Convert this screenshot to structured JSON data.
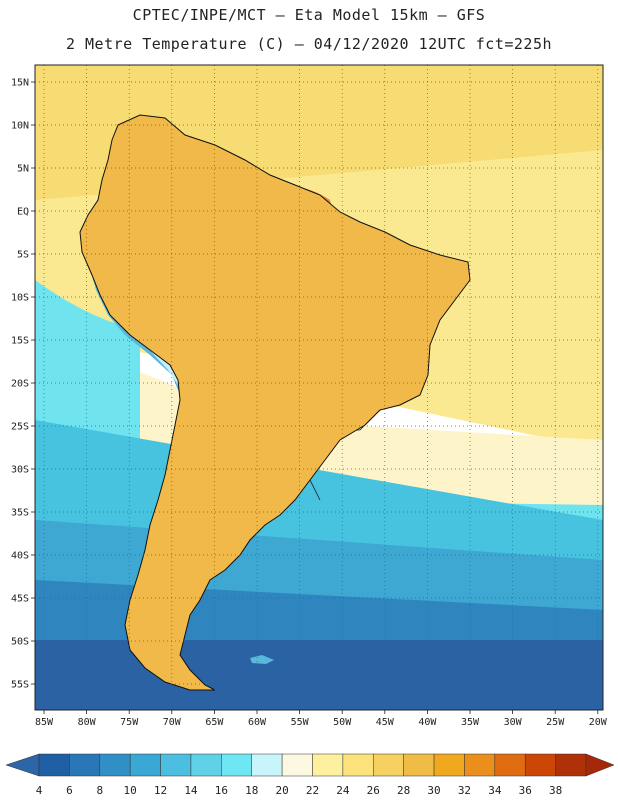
{
  "header": {
    "line1": "CPTEC/INPE/MCT –  Eta Model 15km – GFS",
    "line2": "2 Metre Temperature (C) – 04/12/2020 12UTC fct=225h"
  },
  "axes": {
    "lat_labels": [
      "15N",
      "10N",
      "5N",
      "EQ",
      "5S",
      "10S",
      "15S",
      "20S",
      "25S",
      "30S",
      "35S",
      "40S",
      "45S",
      "50S",
      "55S"
    ],
    "lon_labels": [
      "85W",
      "80W",
      "75W",
      "70W",
      "65W",
      "60W",
      "55W",
      "50W",
      "45W",
      "40W",
      "35W",
      "30W",
      "25W",
      "20W"
    ]
  },
  "colorbar": {
    "labels": [
      "4",
      "6",
      "8",
      "10",
      "12",
      "14",
      "16",
      "18",
      "20",
      "22",
      "24",
      "26",
      "28",
      "30",
      "32",
      "34",
      "36",
      "38"
    ],
    "colors": [
      "#1f5fa3",
      "#2a77b8",
      "#3090c6",
      "#39a8d4",
      "#4cbedf",
      "#5fd2e8",
      "#6ee6f4",
      "#c8f4fb",
      "#fdf8e2",
      "#fdf1a0",
      "#fbe27a",
      "#f6d060",
      "#efbd45",
      "#f0a81e",
      "#ea8e1c",
      "#e06c12",
      "#cc4608",
      "#b03008"
    ],
    "under_color": "#2c65a8",
    "over_color": "#a52808"
  },
  "map_colors": {
    "ocean_trop": "#f6dc72",
    "ocean_warm": "#fbe991",
    "ocean_mid": "#fdf5c9",
    "ocean_cool": "#6fe3ee",
    "ocean_cold1": "#47c3e0",
    "ocean_cold2": "#3ea7d2",
    "ocean_cold3": "#2f86bf",
    "ocean_cold4": "#2b62a3",
    "land_base": "#f0b94a",
    "land_hot": "#e88a2e",
    "land_hotter": "#dc6a22",
    "andes_cold": "#5ab8dc",
    "andes_snow": "#c6f0f8",
    "andes_deep": "#2b74b3"
  }
}
